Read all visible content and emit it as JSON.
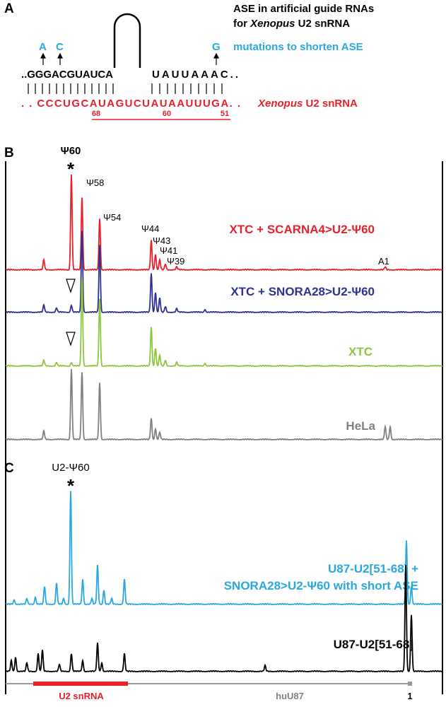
{
  "panel_a": {
    "label": "A",
    "title_line1": "ASE in artificial guide RNAs",
    "title_line2": {
      "prefix": "for ",
      "species": "Xenopus",
      "suffix": " U2 snRNA"
    },
    "mutations": [
      "A",
      "C",
      "G"
    ],
    "mutations_caption": "mutations to shorten ASE",
    "guide_left": "..GGGACGUAUCA",
    "guide_right": "UAUUAAAC..",
    "target": ". . CCCUGCAUAGUCUAUAAUUUGA. .",
    "target_label": {
      "species": "Xenopus",
      "suffix": " U2 snRNA"
    },
    "positions": [
      "68",
      "60",
      "51"
    ]
  },
  "panel_b": {
    "label": "B",
    "peak_labels": {
      "psi60": "Ψ60",
      "star": "*",
      "psi58": "Ψ58",
      "psi54": "Ψ54",
      "psi44": "Ψ44",
      "psi43": "Ψ43",
      "psi41": "Ψ41",
      "psi39": "Ψ39",
      "a1": "A1"
    },
    "traces": [
      "XTC + SCARNA4>U2-Ψ60",
      "XTC + SNORA28>U2-Ψ60",
      "XTC",
      "HeLa"
    ]
  },
  "panel_c": {
    "label": "C",
    "peak_label": "U2-Ψ60",
    "star": "*",
    "trace1_line1": "U87-U2[51-68] +",
    "trace1_line2": "SNORA28>U2-Ψ60 with short ASE",
    "trace2": "U87-U2[51-68]",
    "axis": {
      "u2": "U2 snRNA",
      "u87": "huU87",
      "end": "1"
    }
  }
}
